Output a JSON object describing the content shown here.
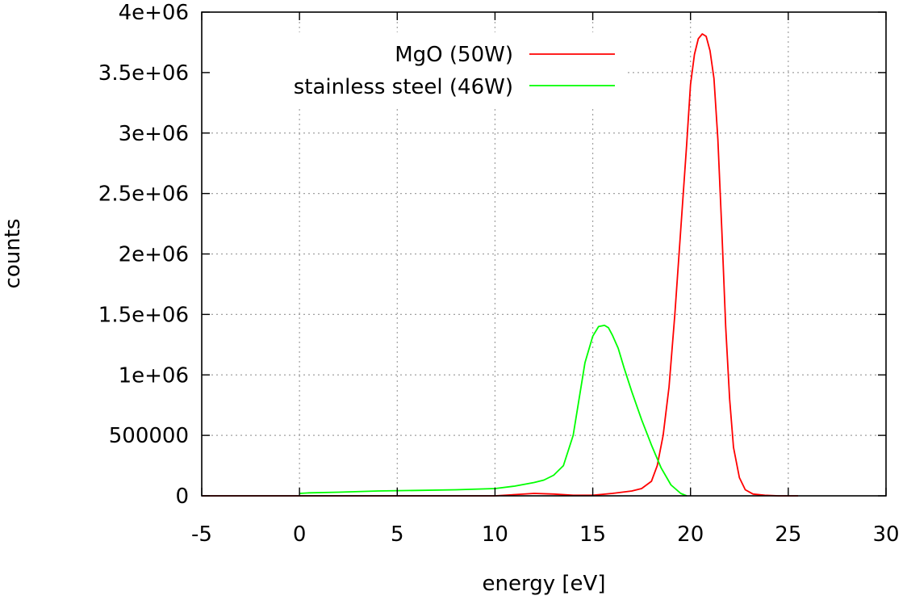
{
  "chart_data": {
    "type": "line",
    "title": "",
    "xlabel": "energy [eV]",
    "ylabel": "counts",
    "xlim": [
      -5,
      30
    ],
    "ylim": [
      0,
      4000000
    ],
    "xticks": [
      -5,
      0,
      5,
      10,
      15,
      20,
      25,
      30
    ],
    "xtick_labels": [
      "-5",
      "0",
      "5",
      "10",
      "15",
      "20",
      "25",
      "30"
    ],
    "yticks": [
      0,
      500000,
      1000000,
      1500000,
      2000000,
      2500000,
      3000000,
      3500000,
      4000000
    ],
    "ytick_labels": [
      "0",
      "500000",
      "1e+06",
      "1.5e+06",
      "2e+06",
      "2.5e+06",
      "3e+06",
      "3.5e+06",
      "4e+06"
    ],
    "grid": true,
    "legend_position": "top-right",
    "series": [
      {
        "name": "MgO (50W)",
        "color": "#ff0000",
        "x": [
          -5,
          0,
          5,
          10,
          11,
          12,
          13,
          14,
          15,
          16,
          17,
          17.5,
          18,
          18.3,
          18.6,
          18.9,
          19.2,
          19.5,
          19.8,
          20.0,
          20.2,
          20.4,
          20.6,
          20.8,
          21.0,
          21.2,
          21.4,
          21.6,
          21.8,
          22.0,
          22.2,
          22.5,
          22.8,
          23.2,
          23.8,
          24.5,
          25.5
        ],
        "y": [
          0,
          0,
          0,
          0,
          10000,
          20000,
          15000,
          5000,
          5000,
          20000,
          40000,
          60000,
          120000,
          250000,
          500000,
          900000,
          1500000,
          2200000,
          2900000,
          3400000,
          3650000,
          3780000,
          3820000,
          3800000,
          3680000,
          3450000,
          2950000,
          2200000,
          1400000,
          800000,
          400000,
          150000,
          50000,
          15000,
          5000,
          0,
          0
        ]
      },
      {
        "name": "stainless steel (46W)",
        "color": "#00ff00",
        "x": [
          0,
          0.5,
          2,
          4,
          6,
          8,
          10,
          11,
          12,
          12.5,
          13,
          13.5,
          14,
          14.3,
          14.6,
          15.0,
          15.3,
          15.6,
          15.8,
          16.0,
          16.3,
          16.6,
          17.0,
          17.5,
          18.0,
          18.5,
          19.0,
          19.5,
          19.8
        ],
        "y": [
          20000,
          25000,
          30000,
          40000,
          45000,
          50000,
          60000,
          80000,
          110000,
          130000,
          170000,
          250000,
          500000,
          800000,
          1100000,
          1320000,
          1400000,
          1410000,
          1390000,
          1330000,
          1220000,
          1060000,
          860000,
          630000,
          420000,
          230000,
          90000,
          20000,
          0
        ]
      }
    ]
  }
}
